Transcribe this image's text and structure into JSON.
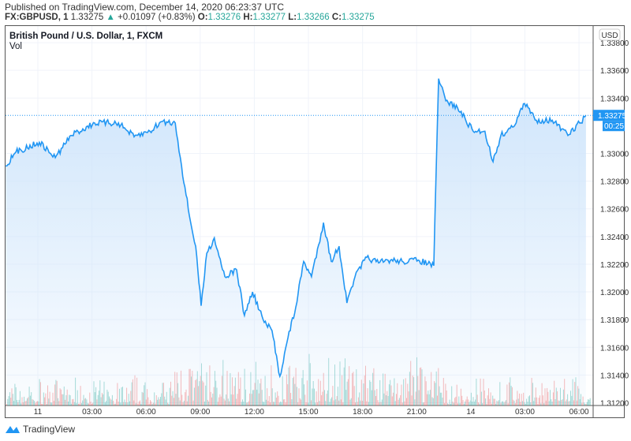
{
  "header": {
    "published": "Published on TradingView.com, December 14, 2020 06:23:37 UTC",
    "symbol": "FX:GBPUSD, 1",
    "last": "1.33275",
    "change": "+0.01097 (+0.83%)",
    "o_label": "O:",
    "o": "1.33276",
    "h_label": "H:",
    "h": "1.33277",
    "l_label": "L:",
    "l": "1.33266",
    "c_label": "C:",
    "c": "1.33275"
  },
  "legend": {
    "title": "British Pound / U.S. Dollar, 1, FXCM",
    "vol": "Vol"
  },
  "footer": {
    "brand": "TradingView"
  },
  "colors": {
    "line": "#2196f3",
    "area": "#cfe5fb",
    "up": "#26a69a",
    "down": "#ef5350",
    "price_label": "#2196f3"
  },
  "chart_data": {
    "type": "area",
    "currency": "USD",
    "current_price": "1.33275",
    "countdown": "00:25",
    "ylim": [
      1.3118,
      1.3392
    ],
    "y_ticks": [
      "1.33800",
      "1.33600",
      "1.33400",
      "1.33000",
      "1.32800",
      "1.32600",
      "1.32400",
      "1.32200",
      "1.32000",
      "1.31800",
      "1.31600",
      "1.31400",
      "1.31200"
    ],
    "x_ticks": [
      "11",
      "03:00",
      "06:00",
      "09:00",
      "12:00",
      "15:00",
      "18:00",
      "21:00",
      "14",
      "03:00",
      "06:00"
    ],
    "x_tick_times": [
      "2020-12-11 00:00",
      "2020-12-11 03:00",
      "2020-12-11 06:00",
      "2020-12-11 09:00",
      "2020-12-11 12:00",
      "2020-12-11 15:00",
      "2020-12-11 18:00",
      "2020-12-11 21:00",
      "2020-12-14 00:00",
      "2020-12-14 03:00",
      "2020-12-14 06:00"
    ],
    "series": [
      [
        "2020-12-10 22:13",
        1.3291
      ],
      [
        "2020-12-10 22:47",
        1.3301
      ],
      [
        "2020-12-11 00:05",
        1.3308
      ],
      [
        "2020-12-11 00:58",
        1.3297
      ],
      [
        "2020-12-11 01:50",
        1.3313
      ],
      [
        "2020-12-11 03:09",
        1.3322
      ],
      [
        "2020-12-11 04:28",
        1.3322
      ],
      [
        "2020-12-11 05:20",
        1.3312
      ],
      [
        "2020-12-11 06:13",
        1.3316
      ],
      [
        "2020-12-11 06:52",
        1.3323
      ],
      [
        "2020-12-11 07:37",
        1.3322
      ],
      [
        "2020-12-11 07:58",
        1.3291
      ],
      [
        "2020-12-11 08:24",
        1.3255
      ],
      [
        "2020-12-11 08:45",
        1.3233
      ],
      [
        "2020-12-11 09:03",
        1.319
      ],
      [
        "2020-12-11 09:22",
        1.3228
      ],
      [
        "2020-12-11 09:47",
        1.3239
      ],
      [
        "2020-12-11 10:22",
        1.3211
      ],
      [
        "2020-12-11 11:01",
        1.3216
      ],
      [
        "2020-12-11 11:27",
        1.3183
      ],
      [
        "2020-12-11 11:54",
        1.32
      ],
      [
        "2020-12-11 12:33",
        1.3178
      ],
      [
        "2020-12-11 12:59",
        1.3172
      ],
      [
        "2020-12-11 13:25",
        1.3139
      ],
      [
        "2020-12-11 13:52",
        1.3167
      ],
      [
        "2020-12-11 14:18",
        1.3189
      ],
      [
        "2020-12-11 14:44",
        1.3222
      ],
      [
        "2020-12-11 15:10",
        1.3211
      ],
      [
        "2020-12-11 15:50",
        1.325
      ],
      [
        "2020-12-11 16:16",
        1.3222
      ],
      [
        "2020-12-11 16:42",
        1.3233
      ],
      [
        "2020-12-11 17:08",
        1.3192
      ],
      [
        "2020-12-11 17:35",
        1.3211
      ],
      [
        "2020-12-11 18:14",
        1.3225
      ],
      [
        "2020-12-11 18:53",
        1.3221
      ],
      [
        "2020-12-11 19:33",
        1.3223
      ],
      [
        "2020-12-11 20:12",
        1.3222
      ],
      [
        "2020-12-11 21:05",
        1.3223
      ],
      [
        "2020-12-11 21:57",
        1.3219
      ],
      [
        "2020-12-13 22:05",
        1.3288
      ],
      [
        "2020-12-13 22:13",
        1.3354
      ],
      [
        "2020-12-13 22:37",
        1.3338
      ],
      [
        "2020-12-13 23:16",
        1.3333
      ],
      [
        "2020-12-14 00:08",
        1.3316
      ],
      [
        "2020-12-14 00:47",
        1.3316
      ],
      [
        "2020-12-14 01:14",
        1.3294
      ],
      [
        "2020-12-14 01:40",
        1.3313
      ],
      [
        "2020-12-14 02:19",
        1.3319
      ],
      [
        "2020-12-14 02:59",
        1.3336
      ],
      [
        "2020-12-14 03:38",
        1.3324
      ],
      [
        "2020-12-14 04:31",
        1.3324
      ],
      [
        "2020-12-14 05:23",
        1.3313
      ],
      [
        "2020-12-14 06:02",
        1.3322
      ],
      [
        "2020-12-14 06:23",
        1.33275
      ]
    ]
  }
}
